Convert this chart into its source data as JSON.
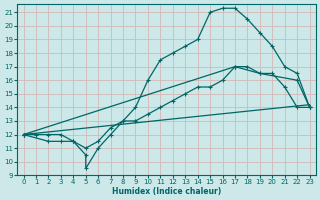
{
  "xlabel": "Humidex (Indice chaleur)",
  "xlim": [
    -0.5,
    23.5
  ],
  "ylim": [
    9,
    21.6
  ],
  "xticks": [
    0,
    1,
    2,
    3,
    4,
    5,
    6,
    7,
    8,
    9,
    10,
    11,
    12,
    13,
    14,
    15,
    16,
    17,
    18,
    19,
    20,
    21,
    22,
    23
  ],
  "yticks": [
    9,
    10,
    11,
    12,
    13,
    14,
    15,
    16,
    17,
    18,
    19,
    20,
    21
  ],
  "bg_color": "#cce8e8",
  "line_color": "#006666",
  "grid_color": "#aacccc",
  "curve1_x": [
    0,
    1,
    2,
    3,
    4,
    5,
    5,
    6,
    7,
    8,
    9,
    10,
    11,
    12,
    13,
    14,
    15,
    16,
    17,
    18,
    19,
    20,
    21,
    22,
    23
  ],
  "curve1_y": [
    12,
    12,
    12,
    12,
    11.5,
    10.5,
    9.5,
    11,
    12,
    13,
    14,
    16,
    17.5,
    18,
    18.5,
    19,
    21,
    21.3,
    21.3,
    20.5,
    19.5,
    18.5,
    17,
    16.5,
    14
  ],
  "curve2_x": [
    0,
    2,
    3,
    4,
    5,
    6,
    7,
    8,
    9,
    10,
    11,
    12,
    13,
    14,
    15,
    16,
    17,
    18,
    19,
    20,
    21,
    22,
    23
  ],
  "curve2_y": [
    12,
    11.5,
    11.5,
    11.5,
    11,
    11.5,
    12.5,
    13,
    13,
    13.5,
    14,
    14.5,
    15,
    15.5,
    15.5,
    16,
    17,
    17,
    16.5,
    16.5,
    15.5,
    14,
    14
  ],
  "line3_x": [
    0,
    17,
    19,
    22,
    23
  ],
  "line3_y": [
    12,
    17,
    16.5,
    16,
    14
  ],
  "line4_x": [
    0,
    23
  ],
  "line4_y": [
    12,
    14.2
  ]
}
